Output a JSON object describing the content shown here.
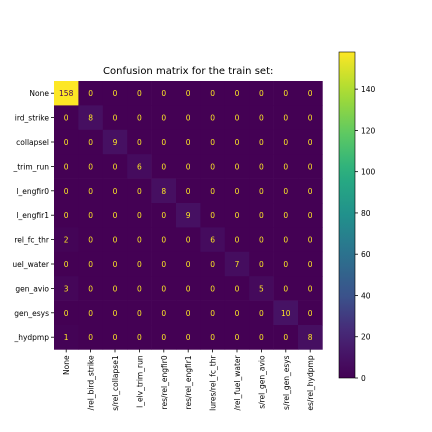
{
  "chart_data": {
    "type": "heatmap",
    "title": "Confusion matrix for the train set:",
    "y_tick_labels": [
      "None",
      "ird_strike",
      "collapsel",
      "_trim_run",
      "l_engfir0",
      "l_engfir1",
      "rel_fc_thr",
      "uel_water",
      "gen_avio",
      "gen_esys",
      "_hydpmp"
    ],
    "x_tick_labels": [
      "None",
      "/rel_bird_strike",
      "s/rel_collapse1",
      "l_elv_trim_run",
      "res/rel_engfir0",
      "res/rel_engfir1",
      "lures/rel_fc_thr",
      "/rel_fuel_water",
      "s/rel_gen_avio",
      "s/rel_gen_esys",
      "es/rel_hydpmp"
    ],
    "matrix": [
      [
        158,
        0,
        0,
        0,
        0,
        0,
        0,
        0,
        0,
        0,
        0
      ],
      [
        0,
        8,
        0,
        0,
        0,
        0,
        0,
        0,
        0,
        0,
        0
      ],
      [
        0,
        0,
        9,
        0,
        0,
        0,
        0,
        0,
        0,
        0,
        0
      ],
      [
        0,
        0,
        0,
        6,
        0,
        0,
        0,
        0,
        0,
        0,
        0
      ],
      [
        0,
        0,
        0,
        0,
        8,
        0,
        0,
        0,
        0,
        0,
        0
      ],
      [
        0,
        0,
        0,
        0,
        0,
        9,
        0,
        0,
        0,
        0,
        0
      ],
      [
        2,
        0,
        0,
        0,
        0,
        0,
        6,
        0,
        0,
        0,
        0
      ],
      [
        0,
        0,
        0,
        0,
        0,
        0,
        0,
        7,
        0,
        0,
        0
      ],
      [
        3,
        0,
        0,
        0,
        0,
        0,
        0,
        0,
        5,
        0,
        0
      ],
      [
        0,
        0,
        0,
        0,
        0,
        0,
        0,
        0,
        0,
        10,
        0
      ],
      [
        1,
        0,
        0,
        0,
        0,
        0,
        0,
        0,
        0,
        0,
        8
      ]
    ],
    "colormap": "viridis",
    "colorbar": {
      "ticks": [
        0,
        20,
        40,
        60,
        80,
        100,
        120,
        140
      ],
      "range": [
        0,
        158
      ]
    },
    "text_colors": {
      "low": "#fde725",
      "high": "#440154"
    }
  }
}
